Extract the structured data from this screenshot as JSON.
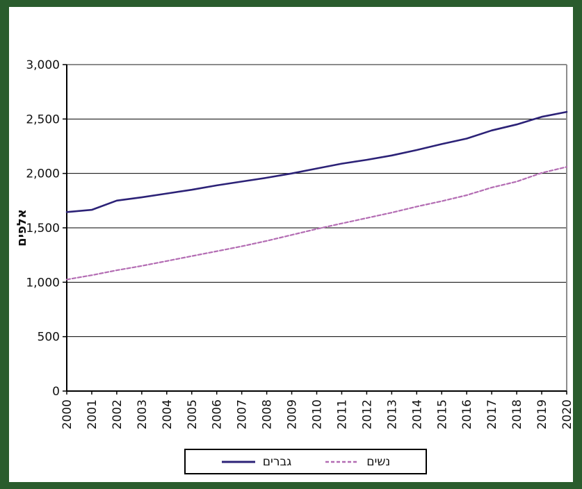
{
  "chart_data": {
    "type": "line",
    "title": "",
    "ylabel": "אלפים",
    "xlabel": "",
    "x": [
      "2000",
      "2001",
      "2002",
      "2003",
      "2004",
      "2005",
      "2006",
      "2007",
      "2008",
      "2009",
      "2010",
      "2011",
      "2012",
      "2013",
      "2014",
      "2015",
      "2016",
      "2017",
      "2018",
      "2019",
      "2020"
    ],
    "series": [
      {
        "name": "גברים",
        "color": "#2C2277",
        "style": "solid",
        "values": [
          1645,
          1665,
          1750,
          1780,
          1815,
          1850,
          1890,
          1925,
          1960,
          2000,
          2045,
          2090,
          2125,
          2165,
          2215,
          2270,
          2320,
          2395,
          2450,
          2520,
          2565
        ]
      },
      {
        "name": "נשים",
        "color": "#B36CB3",
        "style": "dashed",
        "values": [
          1025,
          1065,
          1110,
          1150,
          1195,
          1240,
          1285,
          1330,
          1380,
          1435,
          1490,
          1540,
          1590,
          1640,
          1695,
          1745,
          1800,
          1870,
          1925,
          2005,
          2060
        ]
      }
    ],
    "ylim": [
      0,
      3000
    ],
    "yticks": [
      "0",
      "500",
      "1,000",
      "1,500",
      "2,000",
      "2,500",
      "3,000"
    ],
    "ytick_step": 500,
    "grid": "horizontal",
    "legend_position": "bottom-center"
  },
  "frame": {
    "border_color": "#2A5C2D",
    "plot_top_right_border_color": "#8C8C8C",
    "axis_color": "#000000",
    "gridline_color": "#000000"
  }
}
